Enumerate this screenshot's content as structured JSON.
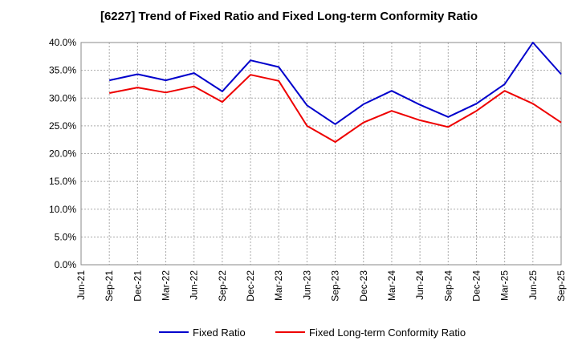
{
  "chart_data": {
    "type": "line",
    "title": "[6227]  Trend of Fixed Ratio and Fixed Long-term Conformity Ratio",
    "xlabel": "",
    "ylabel": "",
    "x_ticks": [
      "Jun-21",
      "Sep-21",
      "Dec-21",
      "Mar-22",
      "Jun-22",
      "Sep-22",
      "Dec-22",
      "Mar-23",
      "Jun-23",
      "Sep-23",
      "Dec-23",
      "Mar-24",
      "Jun-24",
      "Sep-24",
      "Dec-24",
      "Mar-25",
      "Jun-25",
      "Sep-25"
    ],
    "x": [
      "Sep-21",
      "Dec-21",
      "Mar-22",
      "Jun-22",
      "Sep-22",
      "Dec-22",
      "Mar-23",
      "Jun-23",
      "Sep-23",
      "Dec-23",
      "Mar-24",
      "Jun-24",
      "Sep-24",
      "Dec-24",
      "Mar-25",
      "Jun-25",
      "Sep-25"
    ],
    "y_ticks": [
      "0.0%",
      "5.0%",
      "10.0%",
      "15.0%",
      "20.0%",
      "25.0%",
      "30.0%",
      "35.0%",
      "40.0%"
    ],
    "ylim": [
      0,
      40
    ],
    "y_unit": "%",
    "grid": true,
    "legend_position": "bottom",
    "series": [
      {
        "name": "Fixed Ratio",
        "color": "#0000cc",
        "values": [
          33.2,
          34.3,
          33.2,
          34.5,
          31.2,
          36.8,
          35.6,
          28.7,
          25.3,
          28.9,
          31.3,
          28.8,
          26.6,
          29.0,
          32.5,
          40.0,
          34.3
        ]
      },
      {
        "name": "Fixed Long-term Conformity Ratio",
        "color": "#ee0000",
        "values": [
          30.9,
          31.9,
          31.0,
          32.1,
          29.3,
          34.2,
          33.1,
          25.0,
          22.1,
          25.6,
          27.7,
          26.0,
          24.8,
          27.7,
          31.3,
          29.0,
          25.6
        ]
      }
    ]
  }
}
